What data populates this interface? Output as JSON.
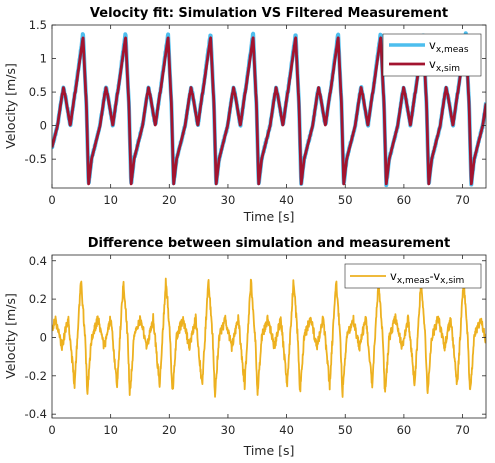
{
  "chart_data": [
    {
      "type": "line",
      "title": "Velocity fit: Simulation VS Filtered Measurement",
      "xlabel": "Time [s]",
      "ylabel": "Velocity [m/s]",
      "xlim": [
        0,
        74
      ],
      "ylim": [
        -0.93,
        1.5
      ],
      "xticks": [
        0,
        10,
        20,
        30,
        40,
        50,
        60,
        70
      ],
      "yticks": [
        -0.5,
        0,
        0.5,
        1,
        1.5
      ],
      "xtick_labels": [
        "0",
        "10",
        "20",
        "30",
        "40",
        "50",
        "60",
        "70"
      ],
      "ytick_labels": [
        "-0.5",
        "0",
        "0.5",
        "1",
        "1.5"
      ],
      "grid": false,
      "legend_position": "top-right",
      "signal": {
        "period_s": 7.25,
        "key_times": [
          0,
          0.2,
          0.34,
          0.5,
          0.8,
          0.88,
          0.93,
          1
        ],
        "key_values": [
          -0.5,
          0.0,
          0.6,
          0.0,
          1.35,
          0.3,
          -0.88,
          -0.5
        ]
      },
      "series": [
        {
          "name_main": "v",
          "name_sub": "x,meas",
          "color": "#4DBEEE",
          "width": 4.0,
          "peak_scale": 1.06,
          "noise": 0.02
        },
        {
          "name_main": "v",
          "name_sub": "x,sim",
          "color": "#A2142F",
          "width": 2.8,
          "peak_scale": 1.0,
          "noise": 0.0
        }
      ]
    },
    {
      "type": "line",
      "title": "Difference between simulation and measurement",
      "xlabel": "Time [s]",
      "ylabel": "Velocity [m/s]",
      "xlim": [
        0,
        74
      ],
      "ylim": [
        -0.42,
        0.43
      ],
      "xticks": [
        0,
        10,
        20,
        30,
        40,
        50,
        60,
        70
      ],
      "yticks": [
        -0.4,
        -0.2,
        0,
        0.2,
        0.4
      ],
      "xtick_labels": [
        "0",
        "10",
        "20",
        "30",
        "40",
        "50",
        "60",
        "70"
      ],
      "ytick_labels": [
        "-0.4",
        "-0.2",
        "0",
        "0.2",
        "0.4"
      ],
      "grid": false,
      "legend_position": "top-right",
      "signal": {
        "period_s": 7.25,
        "key_times": [
          0,
          0.15,
          0.3,
          0.45,
          0.6,
          0.75,
          0.85,
          0.9,
          1
        ],
        "key_values": [
          0.0,
          0.1,
          -0.05,
          0.1,
          -0.25,
          0.3,
          0.0,
          -0.3,
          0.0
        ]
      },
      "series": [
        {
          "name_main": "v",
          "name_sub": "x,meas",
          "name_sep": "-v",
          "name_sub2": "x,sim",
          "color": "#EDB120",
          "width": 1.8,
          "noise": 0.025
        }
      ]
    }
  ]
}
